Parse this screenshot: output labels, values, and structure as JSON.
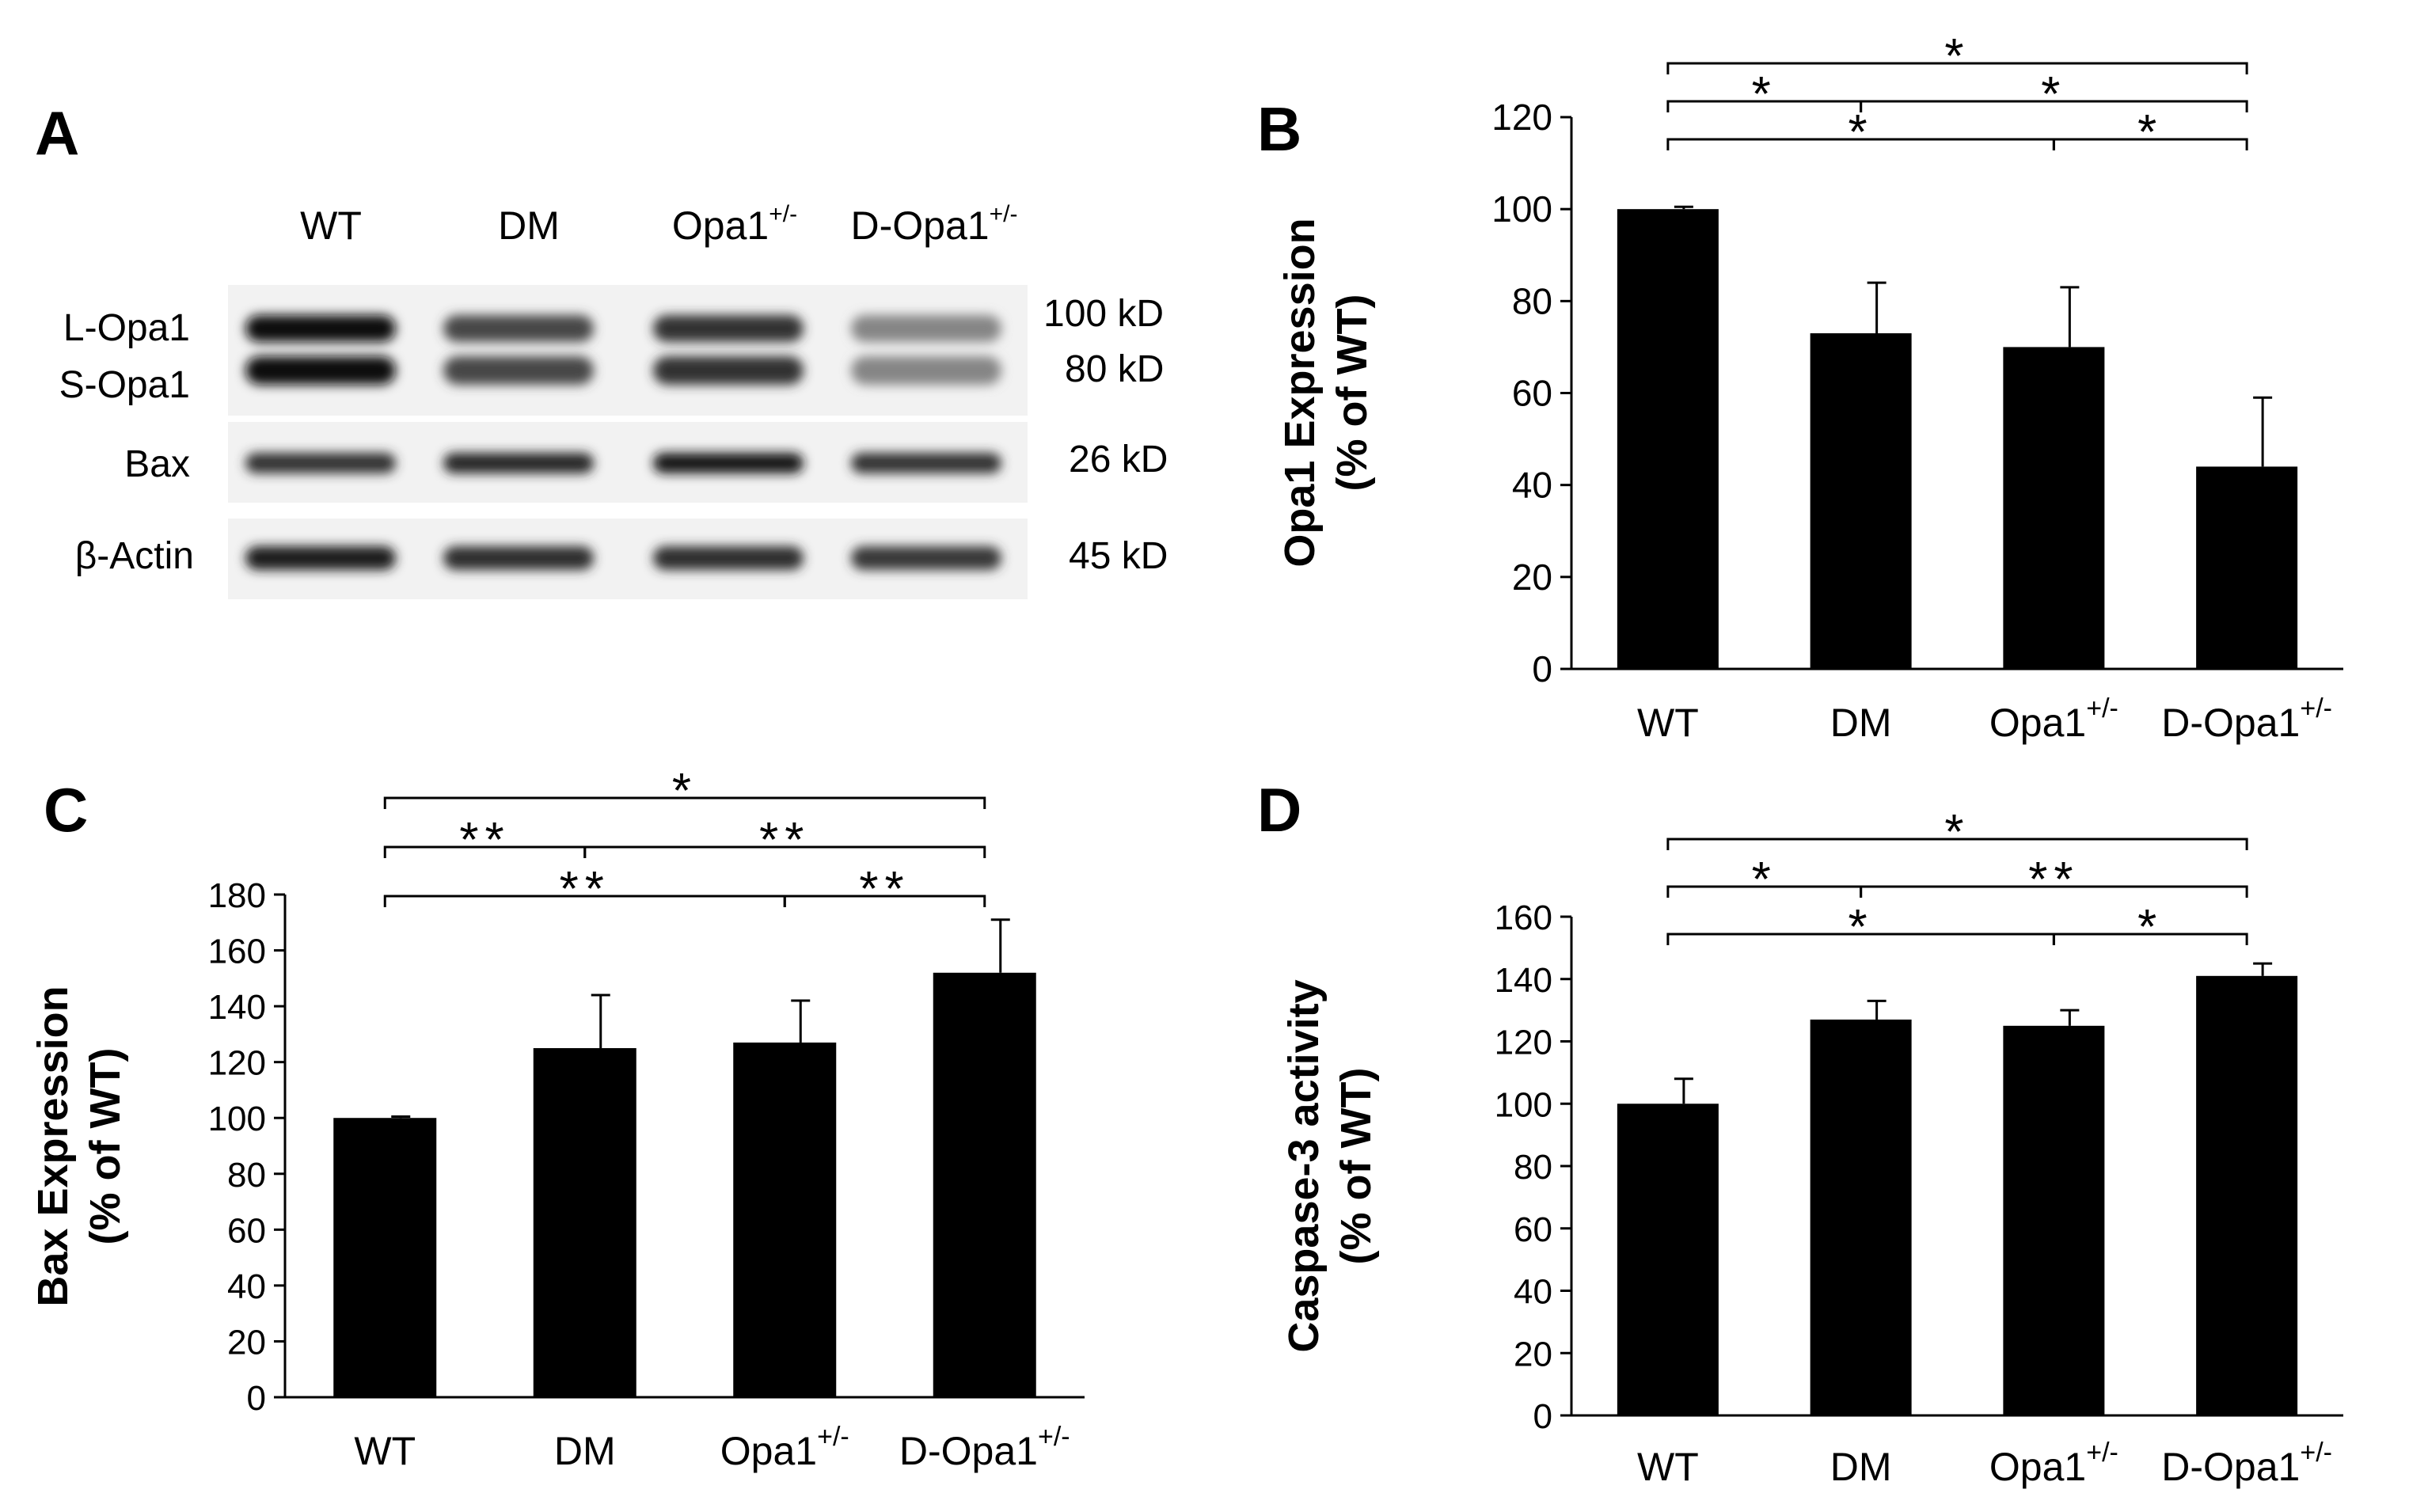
{
  "blot": {
    "panel_label": "A",
    "lanes": [
      {
        "base": "WT",
        "sup": ""
      },
      {
        "base": "DM",
        "sup": ""
      },
      {
        "base": "Opa1",
        "sup": "+/-"
      },
      {
        "base": "D-Opa1",
        "sup": "+/-"
      }
    ],
    "rows": [
      {
        "labels": [
          "L-Opa1",
          "S-Opa1"
        ],
        "sizes": [
          "100 kD",
          "80 kD"
        ],
        "intensity": [
          0.95,
          0.72,
          0.8,
          0.48
        ]
      },
      {
        "labels": [
          "Bax"
        ],
        "sizes": [
          "26 kD"
        ],
        "intensity": [
          0.8,
          0.85,
          0.92,
          0.8
        ]
      },
      {
        "labels": [
          "β-Actin"
        ],
        "sizes": [
          "45 kD"
        ],
        "intensity": [
          0.88,
          0.82,
          0.82,
          0.78
        ]
      }
    ]
  },
  "chart_data": [
    {
      "type": "bar",
      "panel_label": "B",
      "title": "",
      "ylabel": [
        "Opa1 Expression",
        "(% of WT)"
      ],
      "xlabel": "",
      "categories": [
        {
          "base": "WT",
          "sup": ""
        },
        {
          "base": "DM",
          "sup": ""
        },
        {
          "base": "Opa1",
          "sup": "+/-"
        },
        {
          "base": "D-Opa1",
          "sup": "+/-"
        }
      ],
      "values": [
        100,
        73,
        70,
        44
      ],
      "errors": [
        0.5,
        11,
        13,
        15
      ],
      "ylim": [
        0,
        120
      ],
      "yticks": [
        0,
        20,
        40,
        60,
        80,
        100,
        120
      ],
      "significance": [
        {
          "from": 0,
          "to": 3,
          "level": 3,
          "label": "*"
        },
        {
          "from": 0,
          "to": 1,
          "level": 2,
          "label": "*"
        },
        {
          "from": 1,
          "to": 3,
          "level": 2,
          "label": "*"
        },
        {
          "from": 0,
          "to": 2,
          "level": 1,
          "label": "*"
        },
        {
          "from": 2,
          "to": 3,
          "level": 1,
          "label": "*"
        }
      ]
    },
    {
      "type": "bar",
      "panel_label": "C",
      "title": "",
      "ylabel": [
        "Bax Expression",
        "(% of WT)"
      ],
      "xlabel": "",
      "categories": [
        {
          "base": "WT",
          "sup": ""
        },
        {
          "base": "DM",
          "sup": ""
        },
        {
          "base": "Opa1",
          "sup": "+/-"
        },
        {
          "base": "D-Opa1",
          "sup": "+/-"
        }
      ],
      "values": [
        100,
        125,
        127,
        152
      ],
      "errors": [
        0.5,
        19,
        15,
        19
      ],
      "ylim": [
        0,
        180
      ],
      "yticks": [
        0,
        20,
        40,
        60,
        80,
        100,
        120,
        140,
        160,
        180
      ],
      "significance": [
        {
          "from": 0,
          "to": 3,
          "level": 3,
          "label": "*"
        },
        {
          "from": 0,
          "to": 1,
          "level": 2,
          "label": "**"
        },
        {
          "from": 1,
          "to": 3,
          "level": 2,
          "label": "**"
        },
        {
          "from": 0,
          "to": 2,
          "level": 1,
          "label": "**"
        },
        {
          "from": 2,
          "to": 3,
          "level": 1,
          "label": "**"
        }
      ]
    },
    {
      "type": "bar",
      "panel_label": "D",
      "title": "",
      "ylabel": [
        "Caspase-3 activity",
        "(% of WT)"
      ],
      "xlabel": "",
      "categories": [
        {
          "base": "WT",
          "sup": ""
        },
        {
          "base": "DM",
          "sup": ""
        },
        {
          "base": "Opa1",
          "sup": "+/-"
        },
        {
          "base": "D-Opa1",
          "sup": "+/-"
        }
      ],
      "values": [
        100,
        127,
        125,
        141
      ],
      "errors": [
        8,
        6,
        5,
        4
      ],
      "ylim": [
        0,
        160
      ],
      "yticks": [
        0,
        20,
        40,
        60,
        80,
        100,
        120,
        140,
        160
      ],
      "significance": [
        {
          "from": 0,
          "to": 3,
          "level": 3,
          "label": "*"
        },
        {
          "from": 0,
          "to": 1,
          "level": 2,
          "label": "*"
        },
        {
          "from": 1,
          "to": 3,
          "level": 2,
          "label": "**"
        },
        {
          "from": 0,
          "to": 2,
          "level": 1,
          "label": "*"
        },
        {
          "from": 2,
          "to": 3,
          "level": 1,
          "label": "*"
        }
      ]
    }
  ]
}
